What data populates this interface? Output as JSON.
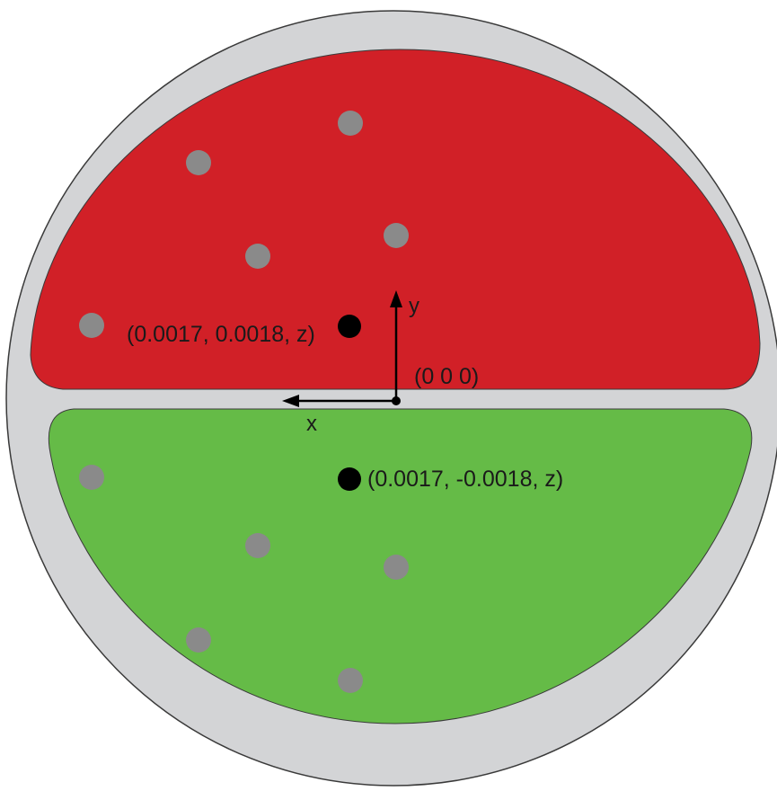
{
  "colors": {
    "housing": "#d3d4d6",
    "outline": "#3a3a3a",
    "upper_region": "#d12027",
    "lower_region": "#65bb47",
    "grey_marker": "#8a8a8a",
    "black_marker": "#000000",
    "axis": "#000000"
  },
  "labels": {
    "upper_point": "(0.0017, 0.0018, z)",
    "lower_point": "(0.0017, -0.0018, z)",
    "origin": "(0 0 0)",
    "x_axis": "x",
    "y_axis": "y"
  },
  "upper_region": {
    "grey_marker_count": 5
  },
  "lower_region": {
    "grey_marker_count": 5
  }
}
